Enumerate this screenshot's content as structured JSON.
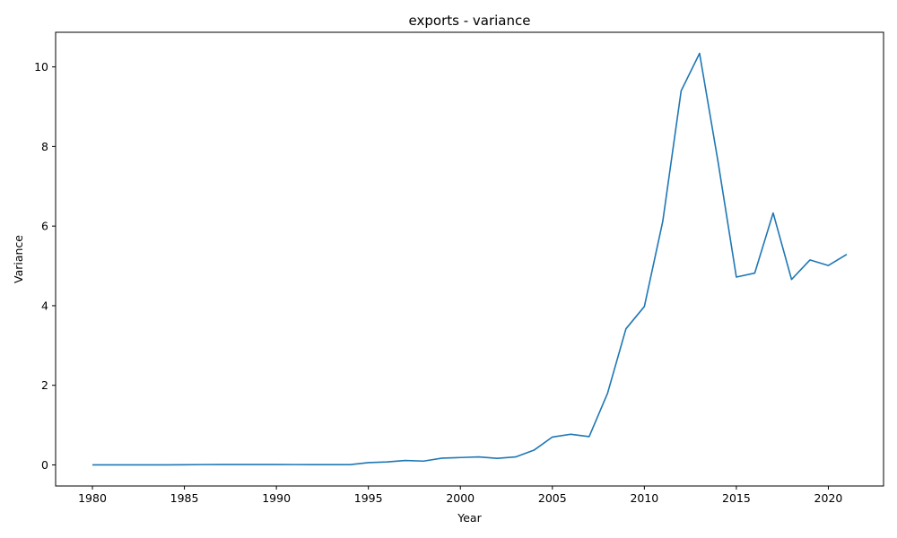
{
  "chart_data": {
    "type": "line",
    "title": "exports - variance",
    "xlabel": "Year",
    "ylabel": "Variance",
    "xlim": [
      1978,
      2023
    ],
    "ylim": [
      -0.53,
      10.87
    ],
    "xticks": [
      1980,
      1985,
      1990,
      1995,
      2000,
      2005,
      2010,
      2015,
      2020
    ],
    "yticks": [
      0,
      2,
      4,
      6,
      8,
      10
    ],
    "grid": false,
    "color": "#1f77b4",
    "series": [
      {
        "x": [
          1980,
          1981,
          1982,
          1983,
          1984,
          1985,
          1986,
          1987,
          1988,
          1989,
          1990,
          1991,
          1992,
          1993,
          1994,
          1995,
          1996,
          1997,
          1998,
          1999,
          2000,
          2001,
          2002,
          2003,
          2004,
          2005,
          2006,
          2007,
          2008,
          2009,
          2010,
          2011,
          2012,
          2013,
          2014,
          2015,
          2016,
          2017,
          2018,
          2019,
          2020,
          2021
        ],
        "y": [
          0.0,
          0.0,
          0.002,
          0.001,
          0.001,
          0.003,
          0.008,
          0.009,
          0.01,
          0.01,
          0.01,
          0.008,
          0.007,
          0.007,
          0.007,
          0.058,
          0.075,
          0.11,
          0.095,
          0.17,
          0.185,
          0.2,
          0.165,
          0.2,
          0.37,
          0.7,
          0.77,
          0.71,
          1.8,
          3.42,
          3.98,
          6.12,
          9.4,
          10.34,
          7.63,
          4.72,
          4.82,
          6.33,
          4.66,
          5.15,
          5.01,
          5.29
        ]
      }
    ]
  }
}
